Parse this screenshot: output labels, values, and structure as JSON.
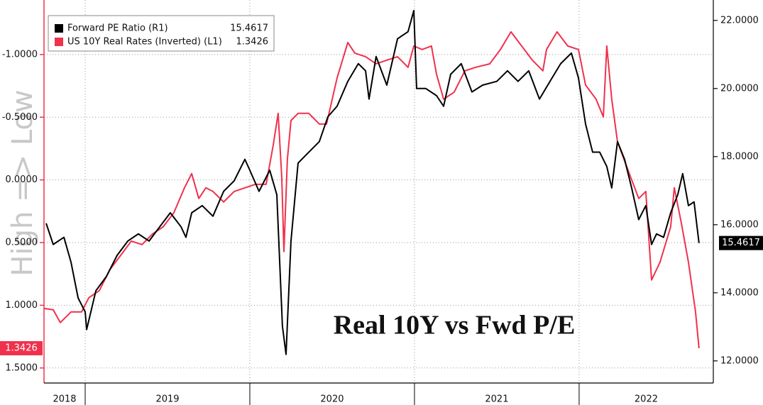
{
  "chart_data": {
    "type": "line",
    "annotation": "Real 10Y vs Fwd P/E",
    "watermark": "High => Low",
    "xlim": [
      2018.75,
      2022.815
    ],
    "xticks": [
      {
        "value": 2018,
        "label": "2018"
      },
      {
        "value": 2019,
        "label": "2019"
      },
      {
        "value": 2020,
        "label": "2020"
      },
      {
        "value": 2021,
        "label": "2021"
      },
      {
        "value": 2022,
        "label": "2022"
      }
    ],
    "ylim": [
      1.62,
      -1.435
    ],
    "yticks": [
      {
        "value": -1.0,
        "label": "-1.0000"
      },
      {
        "value": -0.5,
        "label": "-0.5000"
      },
      {
        "value": 0,
        "label": "0.0000"
      },
      {
        "value": 0.5,
        "label": "0.5000"
      },
      {
        "value": 1.0,
        "label": "1.0000"
      },
      {
        "value": 1.5,
        "label": "1.5000"
      }
    ],
    "y2lim": [
      11.35,
      22.6
    ],
    "y2ticks": [
      {
        "value": 12,
        "label": "12.0000"
      },
      {
        "value": 14,
        "label": "14.0000"
      },
      {
        "value": 16,
        "label": "16.0000"
      },
      {
        "value": 18,
        "label": "18.0000"
      },
      {
        "value": 20,
        "label": "20.0000"
      },
      {
        "value": 22,
        "label": "22.0000"
      }
    ],
    "grid": true,
    "legend": "top-left",
    "series": [
      {
        "name": "Forward PE Ratio (R1)",
        "color": "#000000",
        "axis": "y2",
        "x": [
          2018.763,
          2018.806,
          2018.871,
          2018.914,
          2018.957,
          2019.0,
          2019.009,
          2019.065,
          2019.129,
          2019.194,
          2019.259,
          2019.323,
          2019.388,
          2019.453,
          2019.517,
          2019.582,
          2019.612,
          2019.647,
          2019.711,
          2019.776,
          2019.841,
          2019.905,
          2019.97,
          2020.0,
          2020.056,
          2020.121,
          2020.164,
          2020.198,
          2020.22,
          2020.25,
          2020.293,
          2020.358,
          2020.422,
          2020.474,
          2020.53,
          2020.595,
          2020.659,
          2020.703,
          2020.724,
          2020.767,
          2020.832,
          2020.897,
          2020.961,
          2020.996,
          2021.013,
          2021.069,
          2021.134,
          2021.177,
          2021.22,
          2021.284,
          2021.349,
          2021.414,
          2021.5,
          2021.565,
          2021.629,
          2021.694,
          2021.759,
          2021.823,
          2021.888,
          2021.953,
          2021.996,
          2022.039,
          2022.082,
          2022.125,
          2022.168,
          2022.198,
          2022.233,
          2022.276,
          2022.319,
          2022.362,
          2022.405,
          2022.44,
          2022.47,
          2022.513,
          2022.556,
          2022.599,
          2022.629,
          2022.664,
          2022.698,
          2022.728
        ],
        "values": [
          16.04,
          15.42,
          15.63,
          14.9,
          13.85,
          13.44,
          12.92,
          14.06,
          14.48,
          15.1,
          15.52,
          15.73,
          15.52,
          15.94,
          16.35,
          15.94,
          15.63,
          16.35,
          16.56,
          16.25,
          16.98,
          17.29,
          17.92,
          17.6,
          16.98,
          17.6,
          16.88,
          13.02,
          12.19,
          15.52,
          17.81,
          18.13,
          18.44,
          19.17,
          19.48,
          20.21,
          20.73,
          20.52,
          19.69,
          20.94,
          20.1,
          21.46,
          21.67,
          22.29,
          20.0,
          20.0,
          19.79,
          19.48,
          20.42,
          20.73,
          19.9,
          20.1,
          20.21,
          20.52,
          20.21,
          20.52,
          19.69,
          20.21,
          20.73,
          21.04,
          20.31,
          18.96,
          18.13,
          18.13,
          17.71,
          17.08,
          18.44,
          17.92,
          17.08,
          16.15,
          16.56,
          15.42,
          15.73,
          15.63,
          16.35,
          16.88,
          17.5,
          16.56,
          16.67,
          15.4617
        ]
      },
      {
        "name": "US 10Y Real Rates (Inverted) (L1)",
        "color": "#f0314d",
        "axis": "y",
        "x": [
          2018.75,
          2018.806,
          2018.849,
          2018.914,
          2018.978,
          2019.022,
          2019.086,
          2019.151,
          2019.216,
          2019.28,
          2019.345,
          2019.409,
          2019.474,
          2019.539,
          2019.603,
          2019.647,
          2019.69,
          2019.733,
          2019.776,
          2019.841,
          2019.905,
          2019.97,
          2020.034,
          2020.099,
          2020.142,
          2020.172,
          2020.194,
          2020.207,
          2020.228,
          2020.25,
          2020.293,
          2020.358,
          2020.422,
          2020.466,
          2020.53,
          2020.595,
          2020.638,
          2020.703,
          2020.767,
          2020.832,
          2020.897,
          2020.961,
          2020.996,
          2021.047,
          2021.103,
          2021.134,
          2021.177,
          2021.241,
          2021.306,
          2021.371,
          2021.457,
          2021.522,
          2021.586,
          2021.651,
          2021.716,
          2021.78,
          2021.802,
          2021.866,
          2021.931,
          2021.996,
          2022.039,
          2022.103,
          2022.147,
          2022.168,
          2022.198,
          2022.233,
          2022.297,
          2022.362,
          2022.405,
          2022.44,
          2022.491,
          2022.556,
          2022.578,
          2022.621,
          2022.664,
          2022.707,
          2022.728
        ],
        "values": [
          1.025,
          1.036,
          1.138,
          1.053,
          1.053,
          0.94,
          0.883,
          0.714,
          0.601,
          0.488,
          0.516,
          0.431,
          0.374,
          0.261,
          0.063,
          -0.05,
          0.148,
          0.063,
          0.092,
          0.176,
          0.092,
          0.063,
          0.035,
          0.035,
          -0.276,
          -0.531,
          -0.022,
          0.572,
          -0.163,
          -0.474,
          -0.531,
          -0.531,
          -0.446,
          -0.446,
          -0.813,
          -1.096,
          -1.011,
          -0.983,
          -0.926,
          -0.955,
          -0.983,
          -0.898,
          -1.068,
          -1.04,
          -1.068,
          -0.842,
          -0.644,
          -0.7,
          -0.87,
          -0.898,
          -0.926,
          -1.04,
          -1.181,
          -1.068,
          -0.955,
          -0.87,
          -1.04,
          -1.181,
          -1.068,
          -1.04,
          -0.757,
          -0.644,
          -0.502,
          -1.068,
          -0.644,
          -0.304,
          -0.078,
          0.148,
          0.092,
          0.798,
          0.657,
          0.374,
          0.063,
          0.346,
          0.657,
          1.053,
          1.3426
        ]
      }
    ]
  }
}
